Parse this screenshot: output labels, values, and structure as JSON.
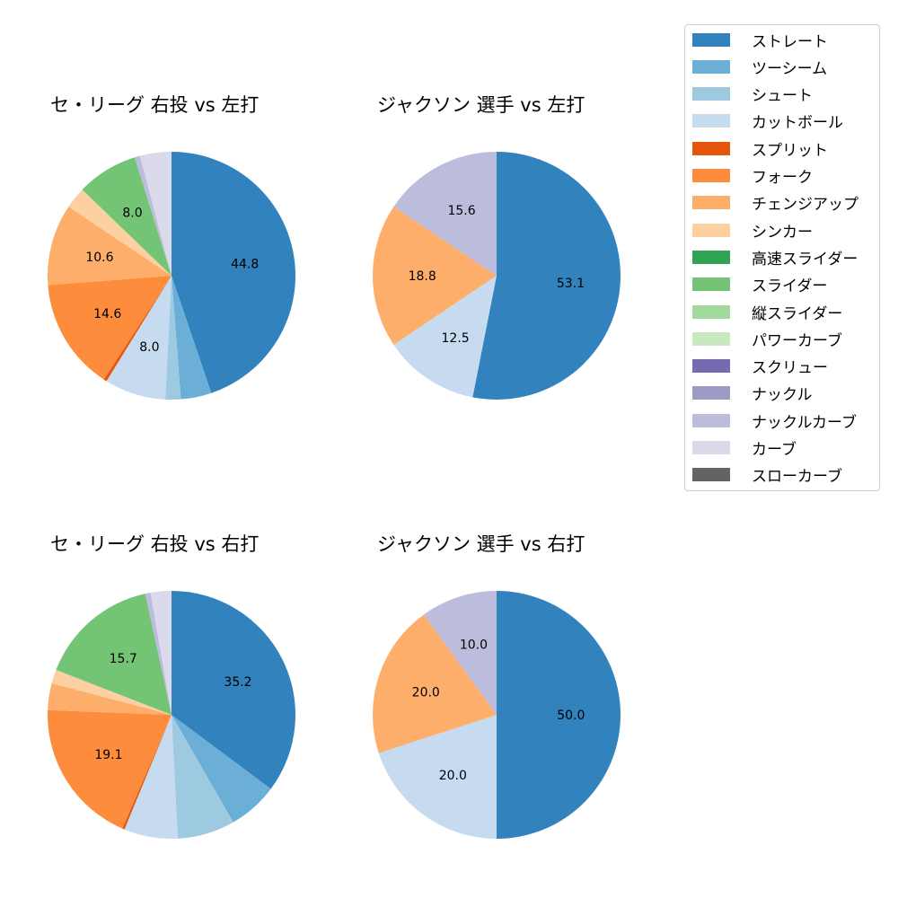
{
  "chart_data": [
    {
      "type": "pie",
      "title": "セ・リーグ 右投 vs 左打",
      "categories": [
        "ストレート",
        "ツーシーム",
        "シュート",
        "カットボール",
        "スプリット",
        "フォーク",
        "チェンジアップ",
        "シンカー",
        "スライダー",
        "ナックルカーブ",
        "カーブ"
      ],
      "values": [
        44.8,
        4.0,
        2.0,
        8.0,
        0.4,
        14.6,
        10.6,
        2.8,
        8.0,
        0.7,
        4.1
      ],
      "labels_shown": [
        "44.8",
        "14.6",
        "10.6",
        "8.0"
      ],
      "start_angle": 90,
      "direction": "clockwise"
    },
    {
      "type": "pie",
      "title": "ジャクソン 選手 vs 左打",
      "categories": [
        "ストレート",
        "カットボール",
        "チェンジアップ",
        "ナックルカーブ"
      ],
      "values": [
        53.1,
        12.5,
        18.8,
        15.6
      ],
      "labels_shown": [
        "53.1",
        "12.5",
        "18.8",
        "15.6"
      ],
      "start_angle": 90,
      "direction": "clockwise"
    },
    {
      "type": "pie",
      "title": "セ・リーグ 右投 vs 右打",
      "categories": [
        "ストレート",
        "ツーシーム",
        "シュート",
        "カットボール",
        "スプリット",
        "フォーク",
        "チェンジアップ",
        "シンカー",
        "スライダー",
        "ナックルカーブ",
        "カーブ"
      ],
      "values": [
        35.2,
        6.5,
        7.5,
        7.0,
        0.3,
        19.1,
        3.5,
        1.8,
        15.7,
        0.7,
        2.7
      ],
      "labels_shown": [
        "35.2",
        "19.1",
        "15.7"
      ],
      "start_angle": 90,
      "direction": "clockwise"
    },
    {
      "type": "pie",
      "title": "ジャクソン 選手 vs 右打",
      "categories": [
        "ストレート",
        "カットボール",
        "チェンジアップ",
        "ナックルカーブ"
      ],
      "values": [
        50.0,
        20.0,
        20.0,
        10.0
      ],
      "labels_shown": [
        "50.0",
        "20.0",
        "20.0",
        "10.0"
      ],
      "start_angle": 90,
      "direction": "clockwise"
    }
  ],
  "legend": {
    "items": [
      {
        "label": "ストレート",
        "color": "#3182bd"
      },
      {
        "label": "ツーシーム",
        "color": "#6baed6"
      },
      {
        "label": "シュート",
        "color": "#9ecae1"
      },
      {
        "label": "カットボール",
        "color": "#c6dbef"
      },
      {
        "label": "スプリット",
        "color": "#e6550d"
      },
      {
        "label": "フォーク",
        "color": "#fd8d3c"
      },
      {
        "label": "チェンジアップ",
        "color": "#fdae6b"
      },
      {
        "label": "シンカー",
        "color": "#fdd0a2"
      },
      {
        "label": "高速スライダー",
        "color": "#31a354"
      },
      {
        "label": "スライダー",
        "color": "#74c476"
      },
      {
        "label": "縦スライダー",
        "color": "#a1d99b"
      },
      {
        "label": "パワーカーブ",
        "color": "#c7e9c0"
      },
      {
        "label": "スクリュー",
        "color": "#756bb1"
      },
      {
        "label": "ナックル",
        "color": "#9e9ac8"
      },
      {
        "label": "ナックルカーブ",
        "color": "#bcbddc"
      },
      {
        "label": "カーブ",
        "color": "#dadaeb"
      },
      {
        "label": "スローカーブ",
        "color": "#636363"
      }
    ]
  }
}
